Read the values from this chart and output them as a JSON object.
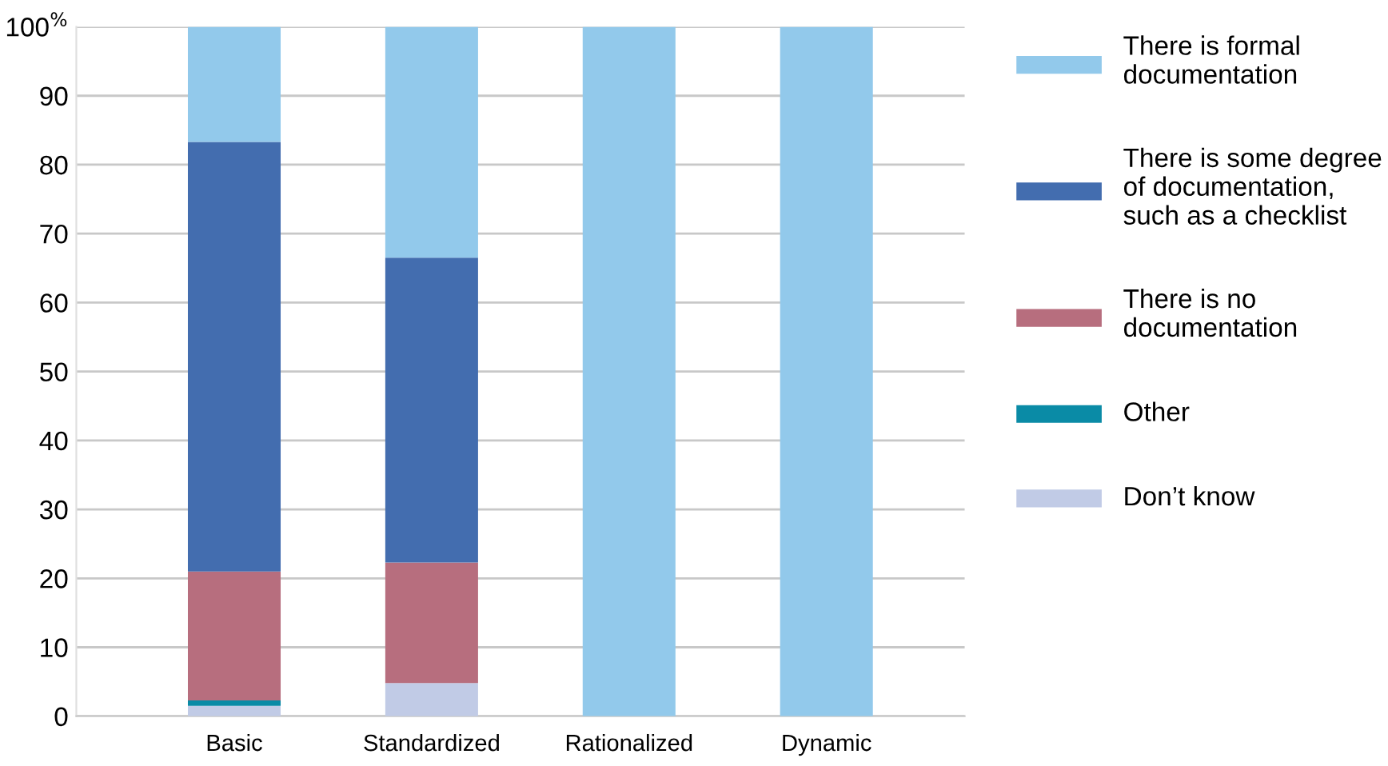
{
  "chart_data": {
    "type": "bar",
    "stacked": true,
    "categories": [
      "Basic",
      "Standardized",
      "Rationalized",
      "Dynamic"
    ],
    "series": [
      {
        "name": "Don’t know",
        "color": "#c1cbe6",
        "values": [
          1.5,
          4.8,
          0,
          0
        ]
      },
      {
        "name": "Other",
        "color": "#0a8ba6",
        "values": [
          0.8,
          0,
          0,
          0
        ]
      },
      {
        "name": "There is no\ndocumentation",
        "color": "#b76e7e",
        "values": [
          18.7,
          17.5,
          0,
          0
        ]
      },
      {
        "name": "There is some degree\nof documentation,\nsuch as a checklist",
        "color": "#436daf",
        "values": [
          62.3,
          44.2,
          0,
          0
        ]
      },
      {
        "name": "There is formal\ndocumentation",
        "color": "#92c9eb",
        "values": [
          16.7,
          33.5,
          100,
          100
        ]
      }
    ],
    "ylim": [
      0,
      100
    ],
    "yticks": [
      0,
      10,
      20,
      30,
      40,
      50,
      60,
      70,
      80,
      90,
      {
        "value": 100,
        "label": "100$^{%}$"
      }
    ],
    "grid": "y",
    "legend": "right"
  }
}
